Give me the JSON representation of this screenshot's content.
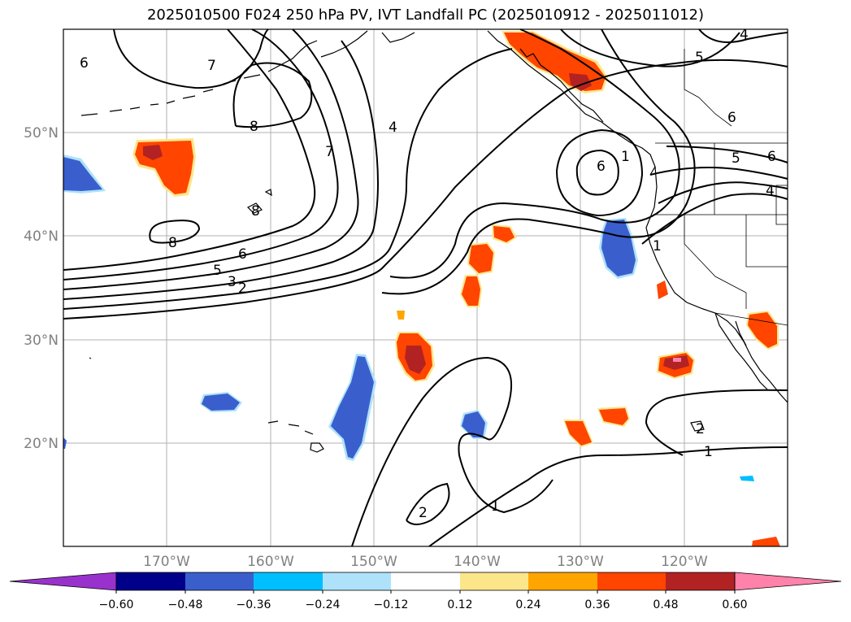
{
  "title": "2025010500 F024 250 hPa PV, IVT Landfall PC (2025010912 - 2025011012)",
  "map": {
    "lon_range": [
      -180,
      -110
    ],
    "lat_range": [
      10,
      60
    ],
    "lat_labels": [
      "50°N",
      "40°N",
      "30°N",
      "20°N"
    ],
    "lon_labels": [
      "170°W",
      "160°W",
      "150°W",
      "140°W",
      "130°W",
      "120°W"
    ],
    "pv_contour_labels": [
      "6",
      "7",
      "8",
      "8",
      "8",
      "7",
      "4",
      "4",
      "5",
      "6",
      "6",
      "5",
      "6",
      "4",
      "5",
      "6",
      "3",
      "2",
      "1",
      "1",
      "1",
      "2",
      "2",
      "1"
    ]
  },
  "colorbar": {
    "tick_labels": [
      "−0.60",
      "−0.48",
      "−0.36",
      "−0.24",
      "−0.12",
      "0.12",
      "0.24",
      "0.36",
      "0.48",
      "0.60"
    ],
    "colors": [
      "#9932cc",
      "#00008b",
      "#3a5fcd",
      "#00bfff",
      "#aee2fa",
      "#ffffff",
      "#fde68a",
      "#ffa500",
      "#ff4500",
      "#b22222",
      "#ff82ab"
    ]
  }
}
